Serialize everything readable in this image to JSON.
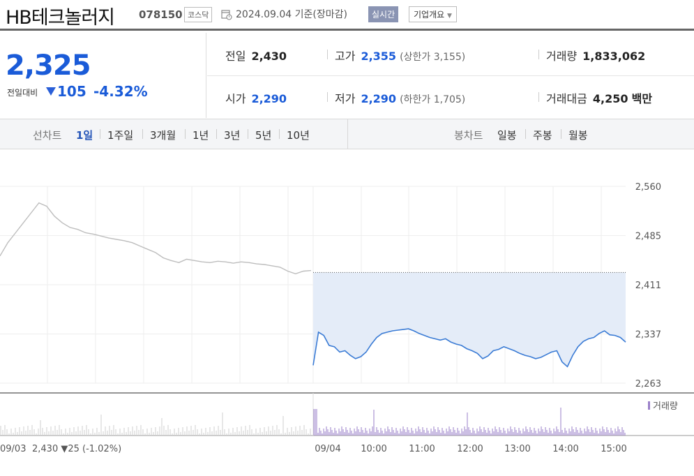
{
  "header": {
    "name": "HB테크놀러지",
    "code": "078150",
    "market": "코스닥",
    "date": "2024.09.04",
    "date_suffix": "기준(장마감)",
    "realtime": "실시간",
    "corp_info": "기업개요"
  },
  "price": {
    "current": "2,325",
    "change_label": "전일대비",
    "change_value": "105",
    "change_pct": "-4.32%"
  },
  "summary": {
    "prev_label": "전일",
    "prev_value": "2,430",
    "high_label": "고가",
    "high_value": "2,355",
    "upper_limit": "(상한가 3,155)",
    "volume_label": "거래량",
    "volume_value": "1,833,062",
    "open_label": "시가",
    "open_value": "2,290",
    "low_label": "저가",
    "low_value": "2,290",
    "lower_limit": "(하한가 1,705)",
    "amount_label": "거래대금",
    "amount_value": "4,250",
    "amount_unit": "백만"
  },
  "tabs": {
    "line_label": "선차트",
    "line_items": [
      "1일",
      "1주일",
      "3개월",
      "1년",
      "3년",
      "5년",
      "10년"
    ],
    "candle_label": "봉차트",
    "candle_items": [
      "일봉",
      "주봉",
      "월봉"
    ]
  },
  "colors": {
    "up_down_blue": "#1a5bd8",
    "line": "#3a7bd5",
    "area": "#e4ecf8",
    "prev_line": "#bdbdbd",
    "volume": "#9a7fc9"
  },
  "chart_data": {
    "type": "line",
    "ylim": [
      2263,
      2560
    ],
    "yticks": [
      "2,560",
      "2,485",
      "2,411",
      "2,337",
      "2,263"
    ],
    "xticks": [
      "09/04",
      "10:00",
      "11:00",
      "12:00",
      "13:00",
      "14:00",
      "15:00"
    ],
    "prev_day_caption": "09/03",
    "prev_day_close": "2,430",
    "prev_day_change": "▼25",
    "prev_day_change_pct": "(-1.02%)",
    "baseline": 2430,
    "volume_legend": "거래량",
    "series": [
      {
        "day": "09/03",
        "values": [
          2455,
          2475,
          2490,
          2505,
          2520,
          2535,
          2530,
          2515,
          2505,
          2498,
          2495,
          2490,
          2488,
          2485,
          2482,
          2480,
          2478,
          2475,
          2470,
          2465,
          2460,
          2452,
          2448,
          2445,
          2450,
          2448,
          2446,
          2445,
          2447,
          2446,
          2444,
          2446,
          2445,
          2443,
          2442,
          2440,
          2438,
          2432,
          2428,
          2432,
          2433
        ]
      },
      {
        "day": "09/04",
        "values": [
          2290,
          2340,
          2335,
          2320,
          2318,
          2310,
          2312,
          2305,
          2300,
          2303,
          2310,
          2322,
          2332,
          2338,
          2340,
          2342,
          2343,
          2344,
          2345,
          2342,
          2338,
          2335,
          2332,
          2330,
          2328,
          2330,
          2325,
          2322,
          2320,
          2315,
          2312,
          2308,
          2300,
          2304,
          2312,
          2314,
          2318,
          2315,
          2312,
          2308,
          2305,
          2303,
          2300,
          2302,
          2306,
          2310,
          2312,
          2295,
          2288,
          2305,
          2318,
          2326,
          2330,
          2332,
          2338,
          2342,
          2336,
          2335,
          2332,
          2325
        ]
      }
    ]
  }
}
